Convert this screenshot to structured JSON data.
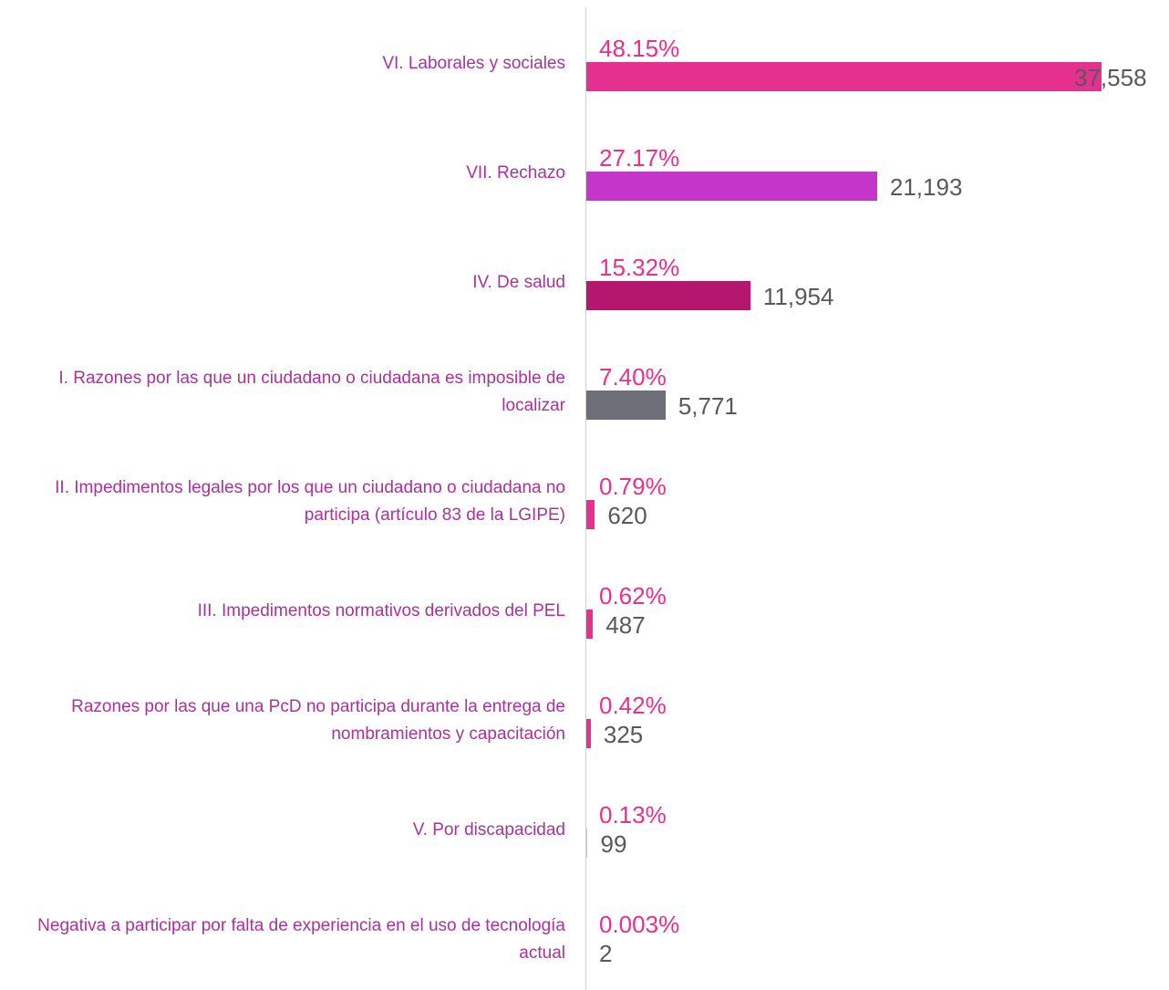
{
  "chart_data": {
    "type": "hbar",
    "categories": [
      "VI. Laborales y sociales",
      "VII. Rechazo",
      "IV. De salud",
      "I. Razones por las que un ciudadano o ciudadana es imposible de localizar",
      "II. Impedimentos legales por los que un ciudadano o ciudadana no participa (artículo 83 de la LGIPE)",
      "III. Impedimentos normativos derivados del PEL",
      "Razones por las que una PcD no participa durante la entrega de nombramientos y capacitación",
      "V. Por discapacidad",
      "Negativa a participar por falta de experiencia en el uso de tecnología actual"
    ],
    "values": [
      37558,
      21193,
      11954,
      5771,
      620,
      487,
      325,
      99,
      2
    ],
    "value_labels": [
      "37,558",
      "21,193",
      "11,954",
      "5,771",
      "620",
      "487",
      "325",
      "99",
      "2"
    ],
    "percent_labels": [
      "48.15%",
      "27.17%",
      "15.32%",
      "7.40%",
      "0.79%",
      "0.62%",
      "0.42%",
      "0.13%",
      "0.003%"
    ],
    "colors": [
      "#e6308f",
      "#c535c9",
      "#b5176e",
      "#6d6e78",
      "#e6308f",
      "#e6308f",
      "#e6308f",
      "#f4b6d4",
      "#f4b6d4"
    ],
    "xlim": [
      0,
      42000
    ]
  }
}
